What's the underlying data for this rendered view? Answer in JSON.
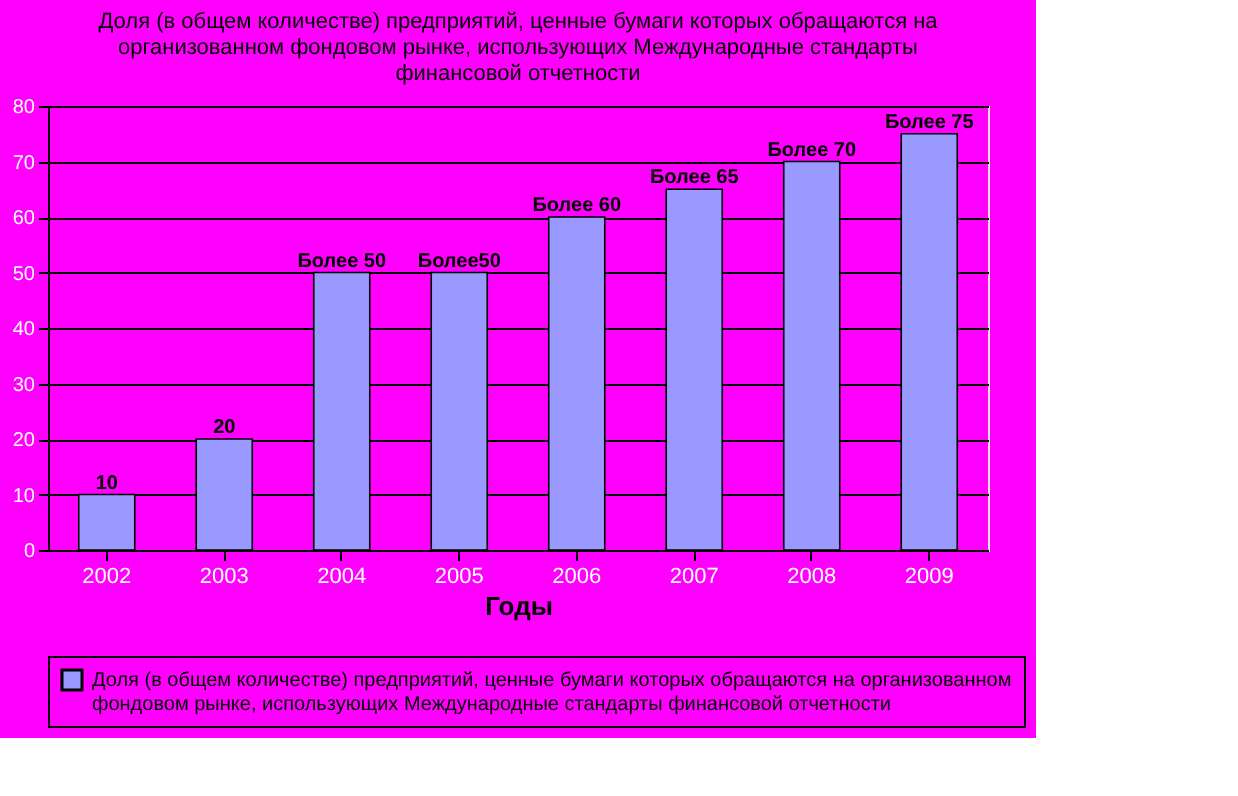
{
  "chart_data": {
    "type": "bar",
    "title": "Доля (в общем количестве) предприятий, ценные бумаги которых обращаются на организованном фондовом рынке, использующих Международные стандарты финансовой отчетности",
    "xlabel": "Годы",
    "categories": [
      "2002",
      "2003",
      "2004",
      "2005",
      "2006",
      "2007",
      "2008",
      "2009"
    ],
    "series": [
      {
        "name": "Доля (в общем количестве) предприятий, ценные бумаги которых обращаются на организованном фондовом рынке, использующих Международные стандарты финансовой отчетности",
        "color": "#9999ff",
        "values": [
          10,
          20,
          50,
          50,
          60,
          65,
          70,
          75
        ],
        "value_labels": [
          "10",
          "20",
          "Более 50",
          "Более50",
          "Более 60",
          "Более 65",
          "Более 70",
          "Более 75"
        ]
      }
    ],
    "ylim": [
      0,
      80
    ],
    "yticks": [
      0,
      10,
      20,
      30,
      40,
      50,
      60,
      70,
      80
    ],
    "grid": "y",
    "legend": "bottom"
  }
}
